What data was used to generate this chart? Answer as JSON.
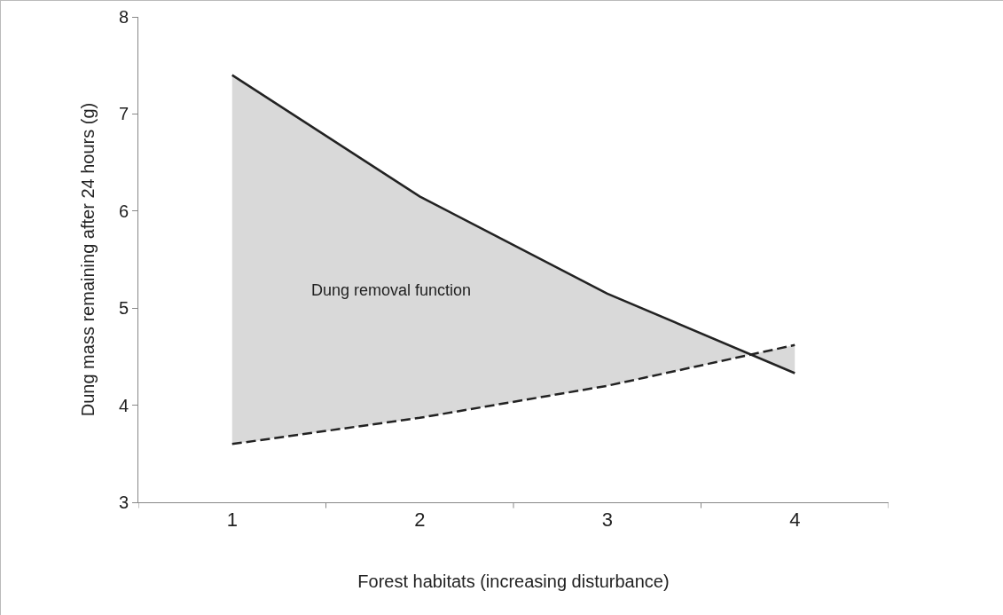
{
  "chart_data": {
    "type": "line",
    "xlabel": "Forest habitats (increasing disturbance)",
    "ylabel": "Dung mass remaining after 24 hours (g)",
    "categories": [
      "1",
      "2",
      "3",
      "4"
    ],
    "series": [
      {
        "color": "#222222",
        "line_style": "solid",
        "values": [
          7.4,
          6.15,
          5.15,
          4.33
        ],
        "lower": [
          3.6,
          3.87,
          4.2,
          4.62
        ],
        "upper": [
          7.4,
          6.15,
          5.15,
          4.33
        ]
      },
      {
        "color": "#222222",
        "line_style": "dashed",
        "values": [
          3.6,
          3.87,
          4.2,
          4.62
        ]
      }
    ],
    "ylim": [
      3,
      8
    ],
    "yticks": [
      3,
      4,
      5,
      6,
      7,
      8
    ],
    "grid": false,
    "marker": "none",
    "annotations": [
      "Dung removal function"
    ]
  }
}
